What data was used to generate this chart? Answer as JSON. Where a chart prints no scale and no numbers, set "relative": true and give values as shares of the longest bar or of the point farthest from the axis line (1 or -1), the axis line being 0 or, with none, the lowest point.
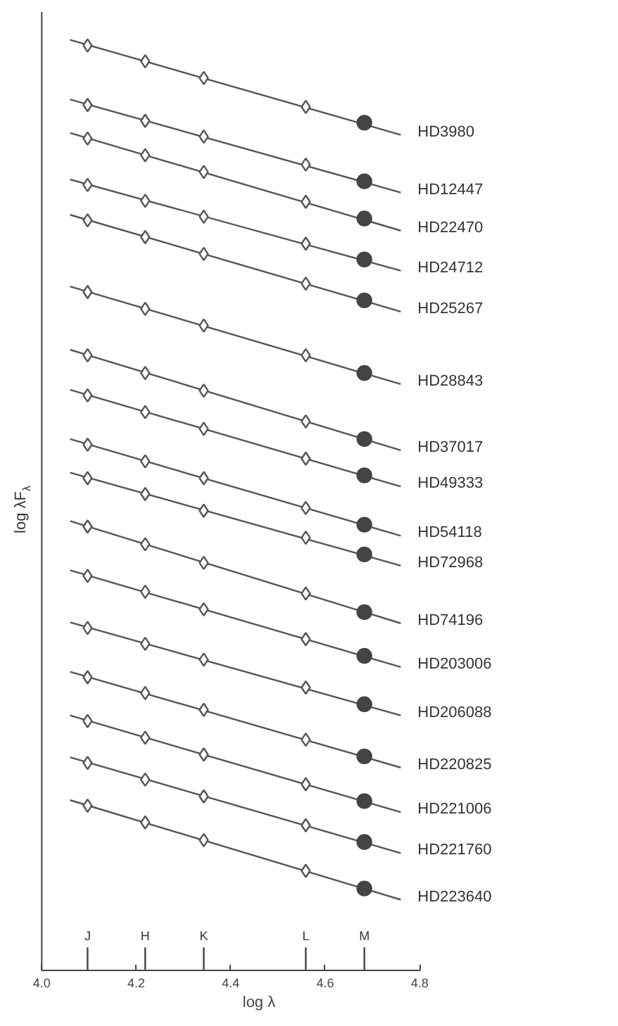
{
  "chart_data": {
    "type": "line",
    "relative": true,
    "xlabel": "log λ",
    "ylabel": "log λF$_{λ}$",
    "xlim": [
      4.0,
      4.8
    ],
    "xticks": [
      {
        "value": 4.0,
        "label": "4.0"
      },
      {
        "value": 4.2,
        "label": "4.2"
      },
      {
        "value": 4.4,
        "label": "4.4"
      },
      {
        "value": 4.6,
        "label": "4.6"
      },
      {
        "value": 4.8,
        "label": "4.8"
      }
    ],
    "grid": false,
    "legend": false,
    "line_style": "solid",
    "annotations": [
      "J",
      "H",
      "K",
      "L",
      "M"
    ],
    "series": [
      {
        "name": "HD3980",
        "marker": "none",
        "color": "#555555",
        "x": [
          4.06,
          4.76
        ],
        "values": [
          1.0,
          0.898
        ]
      },
      {
        "name": "HD12447",
        "marker": "none",
        "color": "#555555",
        "x": [
          4.06,
          4.76
        ],
        "values": [
          0.936,
          0.836
        ]
      },
      {
        "name": "HD22470",
        "marker": "none",
        "color": "#555555",
        "x": [
          4.06,
          4.76
        ],
        "values": [
          0.9,
          0.795
        ]
      },
      {
        "name": "HD24712",
        "marker": "none",
        "color": "#555555",
        "x": [
          4.06,
          4.76
        ],
        "values": [
          0.85,
          0.752
        ]
      },
      {
        "name": "HD25267",
        "marker": "none",
        "color": "#555555",
        "x": [
          4.06,
          4.76
        ],
        "values": [
          0.812,
          0.708
        ]
      },
      {
        "name": "HD28843",
        "marker": "none",
        "color": "#555555",
        "x": [
          4.06,
          4.76
        ],
        "values": [
          0.735,
          0.63
        ]
      },
      {
        "name": "HD37017",
        "marker": "none",
        "color": "#555555",
        "x": [
          4.06,
          4.76
        ],
        "values": [
          0.667,
          0.559
        ]
      },
      {
        "name": "HD49333",
        "marker": "none",
        "color": "#555555",
        "x": [
          4.06,
          4.76
        ],
        "values": [
          0.624,
          0.52
        ]
      },
      {
        "name": "HD54118",
        "marker": "none",
        "color": "#555555",
        "x": [
          4.06,
          4.76
        ],
        "values": [
          0.571,
          0.467
        ]
      },
      {
        "name": "HD72968",
        "marker": "none",
        "color": "#555555",
        "x": [
          4.06,
          4.76
        ],
        "values": [
          0.535,
          0.435
        ]
      },
      {
        "name": "HD74196",
        "marker": "none",
        "color": "#555555",
        "x": [
          4.06,
          4.76
        ],
        "values": [
          0.483,
          0.373
        ]
      },
      {
        "name": "HD203006",
        "marker": "none",
        "color": "#555555",
        "x": [
          4.06,
          4.76
        ],
        "values": [
          0.43,
          0.326
        ]
      },
      {
        "name": "HD206088",
        "marker": "none",
        "color": "#555555",
        "x": [
          4.06,
          4.76
        ],
        "values": [
          0.374,
          0.274
        ]
      },
      {
        "name": "HD220825",
        "marker": "none",
        "color": "#555555",
        "x": [
          4.06,
          4.76
        ],
        "values": [
          0.321,
          0.218
        ]
      },
      {
        "name": "HD221006",
        "marker": "none",
        "color": "#555555",
        "x": [
          4.06,
          4.76
        ],
        "values": [
          0.274,
          0.17
        ]
      },
      {
        "name": "HD221760",
        "marker": "none",
        "color": "#555555",
        "x": [
          4.06,
          4.76
        ],
        "values": [
          0.229,
          0.126
        ]
      },
      {
        "name": "HD223640",
        "marker": "none",
        "color": "#555555",
        "x": [
          4.06,
          4.76
        ],
        "values": [
          0.183,
          0.076
        ]
      },
      {
        "type": "scatter",
        "marker": "diamond",
        "color": "#555555",
        "x": [
          4.097,
          4.219,
          4.343,
          4.559,
          4.097,
          4.219,
          4.343,
          4.559,
          4.097,
          4.219,
          4.343,
          4.559,
          4.097,
          4.219,
          4.343,
          4.559,
          4.097,
          4.219,
          4.343,
          4.559,
          4.097,
          4.219,
          4.343,
          4.559,
          4.097,
          4.219,
          4.343,
          4.559,
          4.097,
          4.219,
          4.343,
          4.559,
          4.097,
          4.219,
          4.343,
          4.559,
          4.097,
          4.219,
          4.343,
          4.559,
          4.097,
          4.219,
          4.343,
          4.559,
          4.097,
          4.219,
          4.343,
          4.559,
          4.097,
          4.219,
          4.343,
          4.559,
          4.097,
          4.219,
          4.343,
          4.559,
          4.097,
          4.219,
          4.343,
          4.559,
          4.097,
          4.219,
          4.343,
          4.559,
          4.097,
          4.219,
          4.343,
          4.559
        ],
        "values": [
          0.994,
          0.977,
          0.959,
          0.928,
          0.93,
          0.913,
          0.896,
          0.866,
          0.894,
          0.876,
          0.858,
          0.826,
          0.844,
          0.827,
          0.81,
          0.781,
          0.806,
          0.788,
          0.77,
          0.738,
          0.729,
          0.711,
          0.693,
          0.661,
          0.661,
          0.642,
          0.623,
          0.59,
          0.618,
          0.6,
          0.582,
          0.55,
          0.565,
          0.547,
          0.529,
          0.497,
          0.529,
          0.512,
          0.494,
          0.465,
          0.477,
          0.458,
          0.438,
          0.405,
          0.424,
          0.407,
          0.388,
          0.356,
          0.368,
          0.351,
          0.334,
          0.304,
          0.315,
          0.298,
          0.28,
          0.248,
          0.268,
          0.25,
          0.232,
          0.2,
          0.223,
          0.205,
          0.187,
          0.156,
          0.177,
          0.159,
          0.14,
          0.107
        ]
      },
      {
        "type": "scatter",
        "marker": "circle",
        "color": "#444444",
        "x": [
          4.683,
          4.683,
          4.683,
          4.683,
          4.683,
          4.683,
          4.683,
          4.683,
          4.683,
          4.683,
          4.683,
          4.683,
          4.683,
          4.683,
          4.683,
          4.683,
          4.683
        ],
        "values": [
          0.911,
          0.848,
          0.808,
          0.764,
          0.72,
          0.642,
          0.571,
          0.532,
          0.479,
          0.447,
          0.385,
          0.338,
          0.286,
          0.23,
          0.182,
          0.138,
          0.088
        ]
      }
    ]
  }
}
